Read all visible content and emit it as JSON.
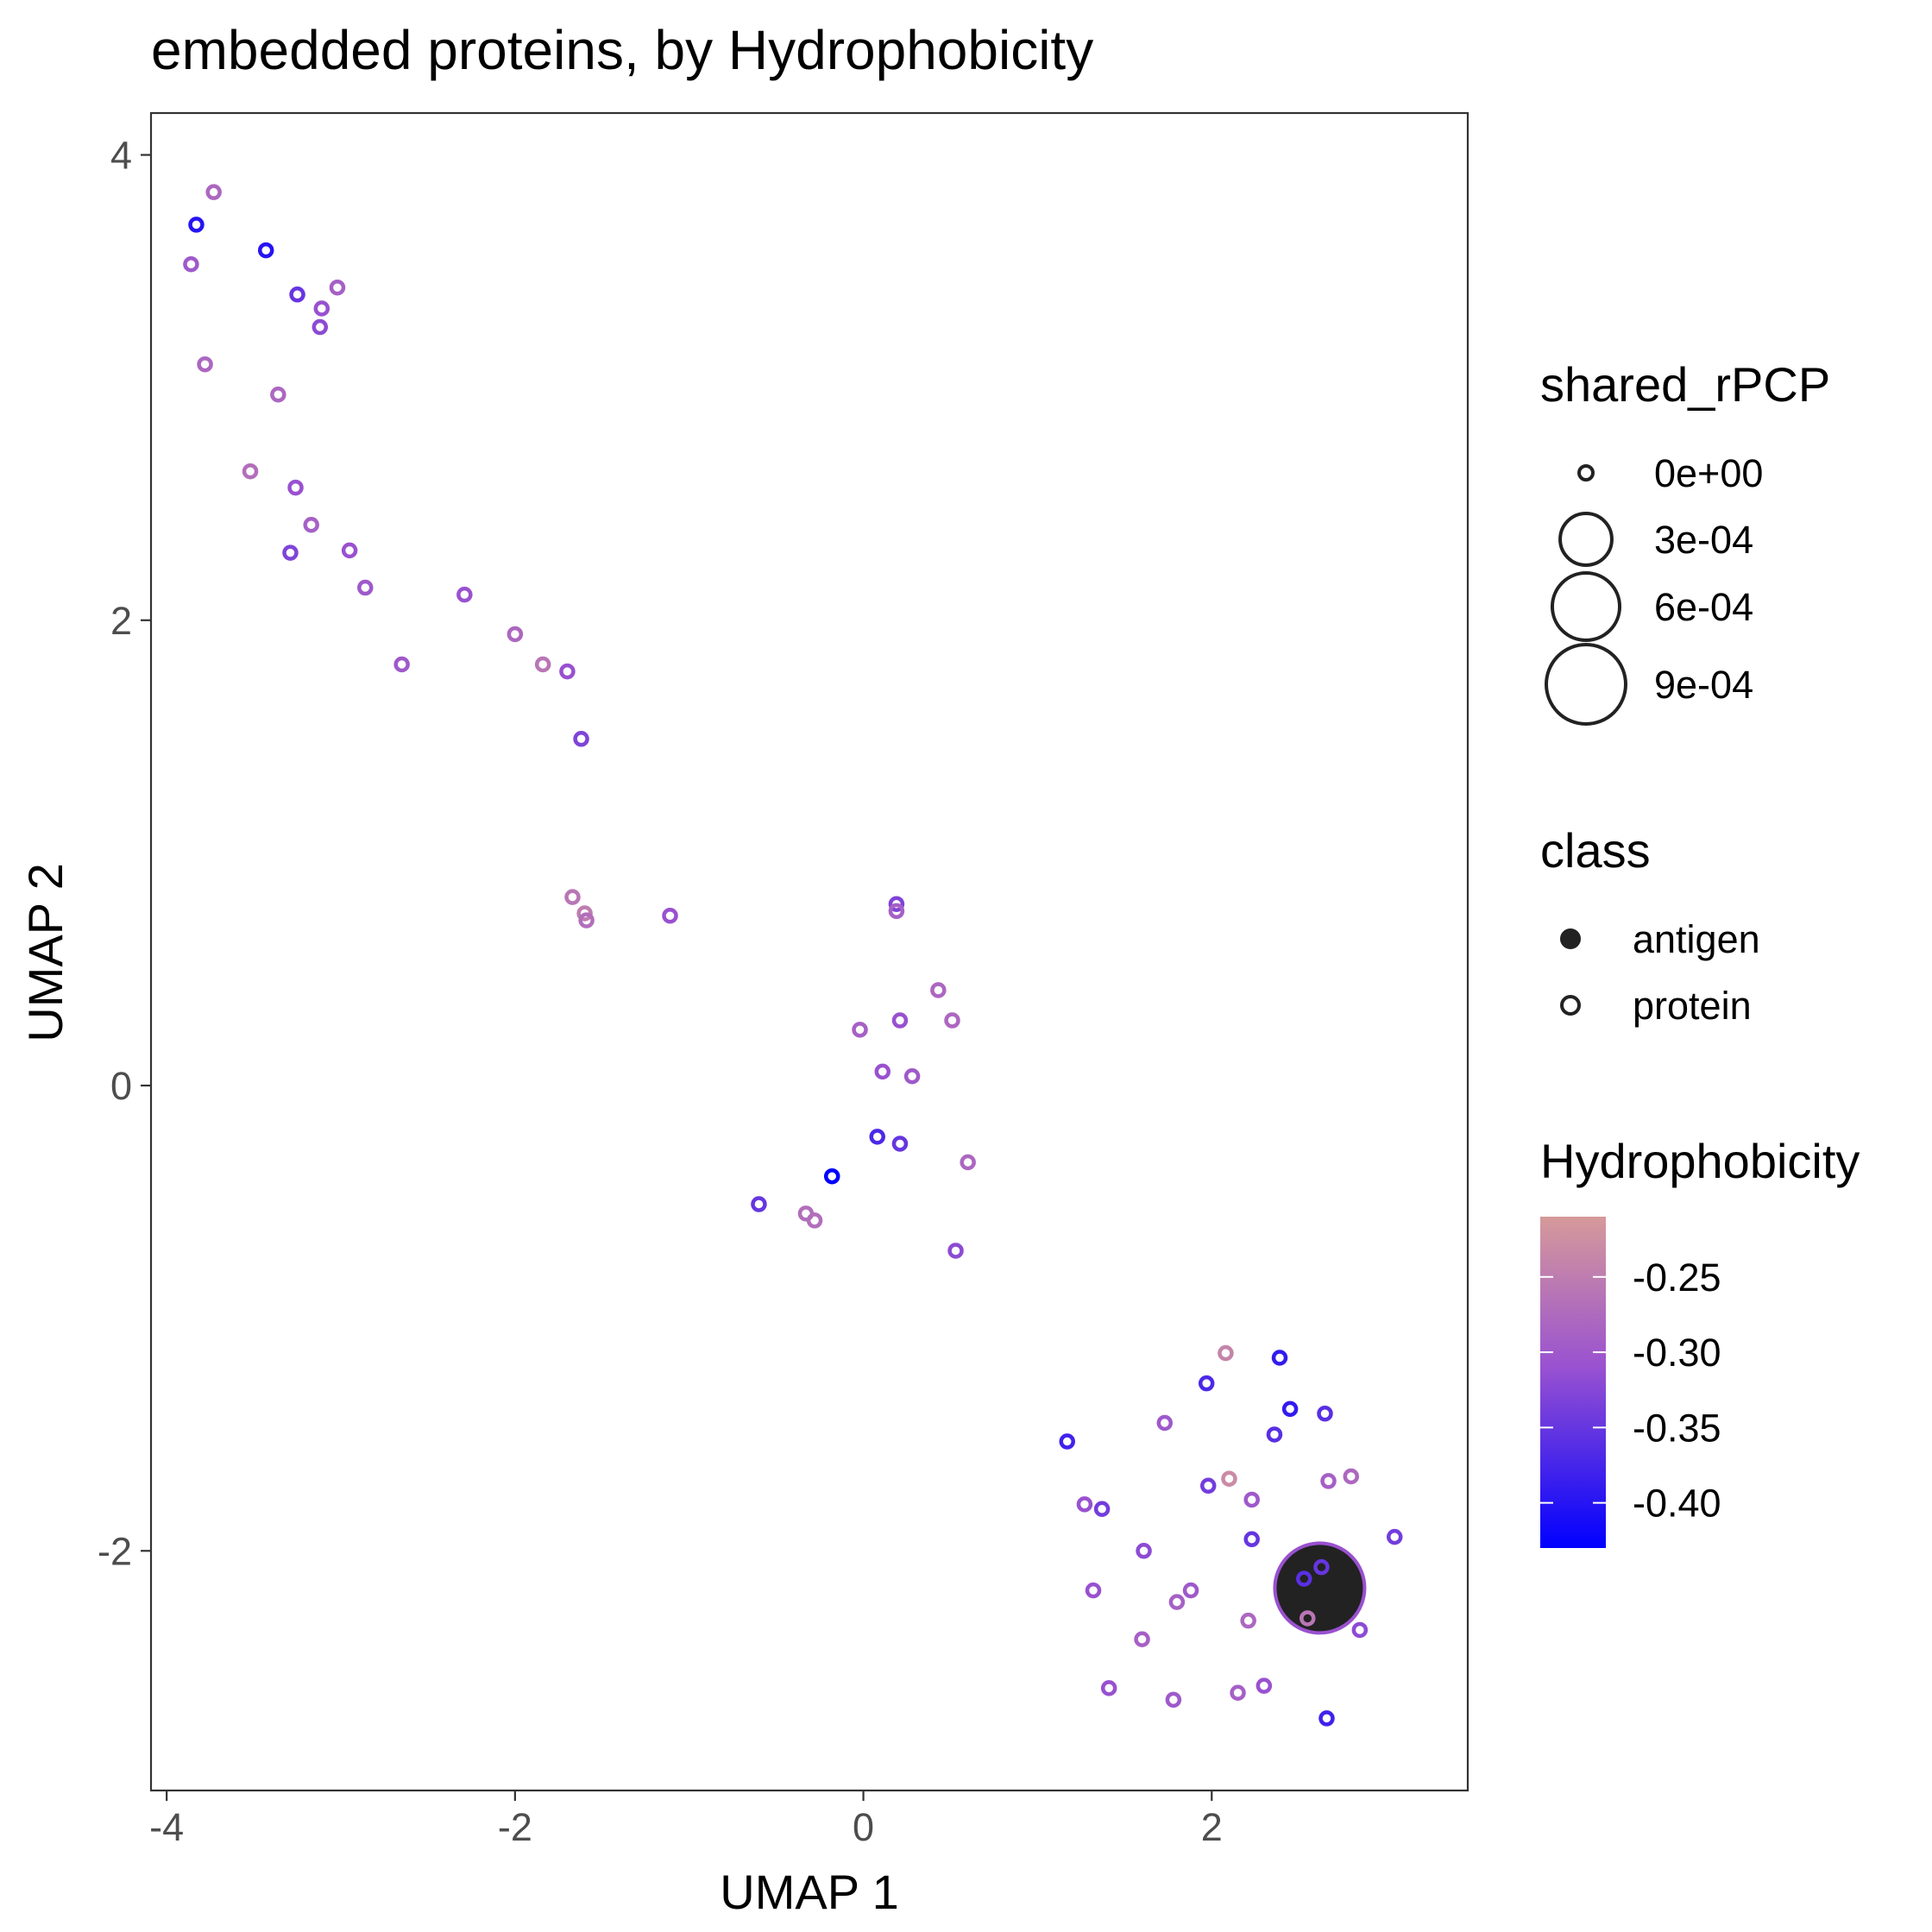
{
  "chart_data": {
    "type": "scatter",
    "title": "embedded proteins, by Hydrophobicity",
    "xlabel": "UMAP 1",
    "ylabel": "UMAP 2",
    "xlim": [
      -4.09,
      3.47
    ],
    "ylim": [
      -3.03,
      4.18
    ],
    "xticks": [
      -4,
      -2,
      0,
      2
    ],
    "yticks": [
      -2,
      0,
      2,
      4
    ],
    "grid": false,
    "legend_placement": "right",
    "size_legend": {
      "title": "shared_rPCP",
      "entries": [
        {
          "label": "0e+00",
          "value": 0
        },
        {
          "label": "3e-04",
          "value": 0.0003
        },
        {
          "label": "6e-04",
          "value": 0.0006
        },
        {
          "label": "9e-04",
          "value": 0.0009
        }
      ]
    },
    "class_legend": {
      "title": "class",
      "entries": [
        {
          "label": "antigen",
          "filled": true
        },
        {
          "label": "protein",
          "filled": false
        }
      ]
    },
    "color_legend": {
      "title": "Hydrophobicity",
      "labels": [
        "-0.25",
        "-0.30",
        "-0.35",
        "-0.40"
      ],
      "values": [
        -0.25,
        -0.3,
        -0.35,
        -0.4
      ],
      "range": [
        -0.43,
        -0.21
      ],
      "low_color": "#0000ff",
      "mid_color": "#9a52d0",
      "high_color": "#d69a9a"
    },
    "points": [
      {
        "x": 2.62,
        "y": -2.16,
        "h": -0.31,
        "size": 0.00096,
        "class": "antigen"
      },
      {
        "x": -3.73,
        "y": 3.84,
        "h": -0.28,
        "size": 0,
        "class": "protein"
      },
      {
        "x": -3.83,
        "y": 3.7,
        "h": -0.4,
        "size": 0,
        "class": "protein"
      },
      {
        "x": -3.43,
        "y": 3.59,
        "h": -0.4,
        "size": 0,
        "class": "protein"
      },
      {
        "x": -3.86,
        "y": 3.53,
        "h": -0.3,
        "size": 0,
        "class": "protein"
      },
      {
        "x": -3.25,
        "y": 3.4,
        "h": -0.35,
        "size": 0,
        "class": "protein"
      },
      {
        "x": -3.02,
        "y": 3.43,
        "h": -0.29,
        "size": 0,
        "class": "protein"
      },
      {
        "x": -3.11,
        "y": 3.34,
        "h": -0.31,
        "size": 0,
        "class": "protein"
      },
      {
        "x": -3.12,
        "y": 3.26,
        "h": -0.32,
        "size": 0,
        "class": "protein"
      },
      {
        "x": -3.78,
        "y": 3.1,
        "h": -0.28,
        "size": 0,
        "class": "protein"
      },
      {
        "x": -3.36,
        "y": 2.97,
        "h": -0.28,
        "size": 0,
        "class": "protein"
      },
      {
        "x": -3.52,
        "y": 2.64,
        "h": -0.27,
        "size": 0,
        "class": "protein"
      },
      {
        "x": -3.26,
        "y": 2.57,
        "h": -0.31,
        "size": 0,
        "class": "protein"
      },
      {
        "x": -3.17,
        "y": 2.41,
        "h": -0.29,
        "size": 0,
        "class": "protein"
      },
      {
        "x": -3.29,
        "y": 2.29,
        "h": -0.33,
        "size": 0,
        "class": "protein"
      },
      {
        "x": -2.95,
        "y": 2.3,
        "h": -0.31,
        "size": 0,
        "class": "protein"
      },
      {
        "x": -2.86,
        "y": 2.14,
        "h": -0.3,
        "size": 0,
        "class": "protein"
      },
      {
        "x": -2.29,
        "y": 2.11,
        "h": -0.31,
        "size": 0,
        "class": "protein"
      },
      {
        "x": -2.65,
        "y": 1.81,
        "h": -0.3,
        "size": 0,
        "class": "protein"
      },
      {
        "x": -2.0,
        "y": 1.94,
        "h": -0.28,
        "size": 0,
        "class": "protein"
      },
      {
        "x": -1.84,
        "y": 1.81,
        "h": -0.26,
        "size": 0,
        "class": "protein"
      },
      {
        "x": -1.7,
        "y": 1.78,
        "h": -0.31,
        "size": 0,
        "class": "protein"
      },
      {
        "x": -1.62,
        "y": 1.49,
        "h": -0.33,
        "size": 0,
        "class": "protein"
      },
      {
        "x": -1.67,
        "y": 0.81,
        "h": -0.26,
        "size": 0,
        "class": "protein"
      },
      {
        "x": -1.6,
        "y": 0.74,
        "h": -0.25,
        "size": 0,
        "class": "protein"
      },
      {
        "x": -1.59,
        "y": 0.71,
        "h": -0.27,
        "size": 0,
        "class": "protein"
      },
      {
        "x": -1.11,
        "y": 0.73,
        "h": -0.31,
        "size": 0,
        "class": "protein"
      },
      {
        "x": 0.19,
        "y": 0.78,
        "h": -0.33,
        "size": 0,
        "class": "protein"
      },
      {
        "x": 0.19,
        "y": 0.75,
        "h": -0.29,
        "size": 0,
        "class": "protein"
      },
      {
        "x": 0.43,
        "y": 0.41,
        "h": -0.28,
        "size": 0,
        "class": "protein"
      },
      {
        "x": -0.02,
        "y": 0.24,
        "h": -0.29,
        "size": 0,
        "class": "protein"
      },
      {
        "x": 0.21,
        "y": 0.28,
        "h": -0.31,
        "size": 0,
        "class": "protein"
      },
      {
        "x": 0.51,
        "y": 0.28,
        "h": -0.28,
        "size": 0,
        "class": "protein"
      },
      {
        "x": 0.11,
        "y": 0.06,
        "h": -0.31,
        "size": 0,
        "class": "protein"
      },
      {
        "x": 0.28,
        "y": 0.04,
        "h": -0.3,
        "size": 0,
        "class": "protein"
      },
      {
        "x": 0.08,
        "y": -0.22,
        "h": -0.37,
        "size": 0,
        "class": "protein"
      },
      {
        "x": 0.21,
        "y": -0.25,
        "h": -0.35,
        "size": 0,
        "class": "protein"
      },
      {
        "x": -0.18,
        "y": -0.39,
        "h": -0.43,
        "size": 0,
        "class": "protein"
      },
      {
        "x": 0.6,
        "y": -0.33,
        "h": -0.28,
        "size": 0,
        "class": "protein"
      },
      {
        "x": -0.6,
        "y": -0.51,
        "h": -0.35,
        "size": 0,
        "class": "protein"
      },
      {
        "x": -0.33,
        "y": -0.55,
        "h": -0.27,
        "size": 0,
        "class": "protein"
      },
      {
        "x": -0.28,
        "y": -0.58,
        "h": -0.27,
        "size": 0,
        "class": "protein"
      },
      {
        "x": 0.53,
        "y": -0.71,
        "h": -0.32,
        "size": 0,
        "class": "protein"
      },
      {
        "x": 2.08,
        "y": -1.15,
        "h": -0.24,
        "size": 0,
        "class": "protein"
      },
      {
        "x": 2.39,
        "y": -1.17,
        "h": -0.39,
        "size": 0,
        "class": "protein"
      },
      {
        "x": 1.97,
        "y": -1.28,
        "h": -0.37,
        "size": 0,
        "class": "protein"
      },
      {
        "x": 2.45,
        "y": -1.39,
        "h": -0.39,
        "size": 0,
        "class": "protein"
      },
      {
        "x": 2.65,
        "y": -1.41,
        "h": -0.36,
        "size": 0,
        "class": "protein"
      },
      {
        "x": 1.73,
        "y": -1.45,
        "h": -0.3,
        "size": 0,
        "class": "protein"
      },
      {
        "x": 2.36,
        "y": -1.5,
        "h": -0.36,
        "size": 0,
        "class": "protein"
      },
      {
        "x": 1.17,
        "y": -1.53,
        "h": -0.38,
        "size": 0,
        "class": "protein"
      },
      {
        "x": 2.1,
        "y": -1.69,
        "h": -0.23,
        "size": 0,
        "class": "protein"
      },
      {
        "x": 1.98,
        "y": -1.72,
        "h": -0.34,
        "size": 0,
        "class": "protein"
      },
      {
        "x": 2.67,
        "y": -1.7,
        "h": -0.29,
        "size": 0,
        "class": "protein"
      },
      {
        "x": 2.8,
        "y": -1.68,
        "h": -0.28,
        "size": 0,
        "class": "protein"
      },
      {
        "x": 2.23,
        "y": -1.78,
        "h": -0.3,
        "size": 0,
        "class": "protein"
      },
      {
        "x": 1.27,
        "y": -1.8,
        "h": -0.31,
        "size": 0,
        "class": "protein"
      },
      {
        "x": 1.37,
        "y": -1.82,
        "h": -0.34,
        "size": 0,
        "class": "protein"
      },
      {
        "x": 2.23,
        "y": -1.95,
        "h": -0.35,
        "size": 0,
        "class": "protein"
      },
      {
        "x": 3.05,
        "y": -1.94,
        "h": -0.34,
        "size": 0,
        "class": "protein"
      },
      {
        "x": 1.61,
        "y": -2.0,
        "h": -0.32,
        "size": 0,
        "class": "protein"
      },
      {
        "x": 2.53,
        "y": -2.12,
        "h": -0.36,
        "size": 0,
        "class": "protein"
      },
      {
        "x": 2.63,
        "y": -2.07,
        "h": -0.35,
        "size": 0,
        "class": "protein"
      },
      {
        "x": 1.32,
        "y": -2.17,
        "h": -0.31,
        "size": 0,
        "class": "protein"
      },
      {
        "x": 1.88,
        "y": -2.17,
        "h": -0.3,
        "size": 0,
        "class": "protein"
      },
      {
        "x": 1.8,
        "y": -2.22,
        "h": -0.29,
        "size": 0,
        "class": "protein"
      },
      {
        "x": 2.55,
        "y": -2.29,
        "h": -0.26,
        "size": 0,
        "class": "protein"
      },
      {
        "x": 2.21,
        "y": -2.3,
        "h": -0.28,
        "size": 0,
        "class": "protein"
      },
      {
        "x": 2.85,
        "y": -2.34,
        "h": -0.32,
        "size": 0,
        "class": "protein"
      },
      {
        "x": 1.6,
        "y": -2.38,
        "h": -0.29,
        "size": 0,
        "class": "protein"
      },
      {
        "x": 1.41,
        "y": -2.59,
        "h": -0.31,
        "size": 0,
        "class": "protein"
      },
      {
        "x": 1.78,
        "y": -2.64,
        "h": -0.3,
        "size": 0,
        "class": "protein"
      },
      {
        "x": 2.15,
        "y": -2.61,
        "h": -0.29,
        "size": 0,
        "class": "protein"
      },
      {
        "x": 2.3,
        "y": -2.58,
        "h": -0.31,
        "size": 0,
        "class": "protein"
      },
      {
        "x": 2.66,
        "y": -2.72,
        "h": -0.38,
        "size": 0,
        "class": "protein"
      }
    ]
  }
}
